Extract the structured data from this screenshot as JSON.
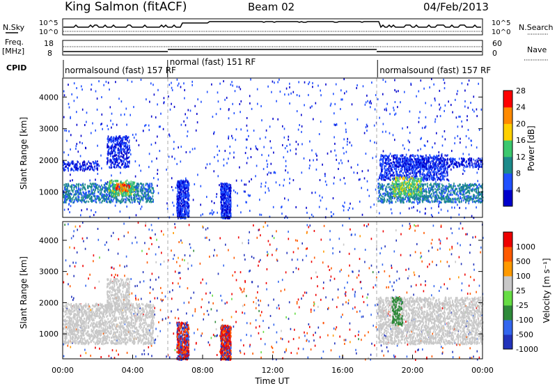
{
  "header": {
    "station": "King Salmon (fitACF)",
    "beam": "Beam 02",
    "date": "04/Feb/2013"
  },
  "status_panels": {
    "nsky_label": "N.Sky",
    "nsearch_label": "N.Search",
    "nsky_ticks": [
      "10^5",
      "10^0"
    ],
    "nsearch_ticks": [
      "10^5",
      "10^0"
    ],
    "freq_label_1": "Freq.",
    "freq_label_2": "[MHz]",
    "freq_ticks": [
      "18",
      "8"
    ],
    "nave_label": "Nave",
    "nave_ticks": [
      "60",
      "0"
    ],
    "cpid_label": "CPID",
    "modes": [
      {
        "label": "normalsound (fast) 157 RF",
        "start_hour": 0,
        "end_hour": 6.0
      },
      {
        "label": "normal (fast) 151 RF",
        "start_hour": 6.0,
        "end_hour": 18.0
      },
      {
        "label": "normalsound (fast) 157 RF",
        "start_hour": 18.0,
        "end_hour": 24.0
      }
    ]
  },
  "chart_data": [
    {
      "type": "heatmap",
      "name": "power",
      "ylabel": "Slant Range [km]",
      "xlabel": "",
      "xlim": [
        0,
        24
      ],
      "ylim": [
        200,
        4600
      ],
      "y_ticks": [
        "1000",
        "2000",
        "3000",
        "4000"
      ],
      "colorbar": {
        "label": "Power [dB]",
        "ticks": [
          "4",
          "8",
          "12",
          "16",
          "20",
          "24",
          "28"
        ],
        "colors": [
          "#0000cc",
          "#2050ff",
          "#1c8a8a",
          "#3cc86e",
          "#ffd000",
          "#ff8a00",
          "#ff0000"
        ],
        "range": [
          0,
          30
        ]
      },
      "regions": [
        {
          "t0": 0.0,
          "t1": 5.2,
          "r0": 700,
          "r1": 1300,
          "level": 9
        },
        {
          "t0": 0.0,
          "t1": 2.0,
          "r0": 1700,
          "r1": 2000,
          "level": 4
        },
        {
          "t0": 2.5,
          "t1": 3.8,
          "r0": 1800,
          "r1": 2800,
          "level": 4
        },
        {
          "t0": 2.6,
          "t1": 4.1,
          "r0": 900,
          "r1": 1400,
          "level": 14
        },
        {
          "t0": 3.0,
          "t1": 3.8,
          "r0": 1050,
          "r1": 1300,
          "level": 24
        },
        {
          "t0": 18.0,
          "t1": 24.0,
          "r0": 700,
          "r1": 1300,
          "level": 9
        },
        {
          "t0": 18.1,
          "t1": 22.0,
          "r0": 1400,
          "r1": 2200,
          "level": 5
        },
        {
          "t0": 18.8,
          "t1": 20.5,
          "r0": 900,
          "r1": 1500,
          "level": 15
        },
        {
          "t0": 19.0,
          "t1": 24.0,
          "r0": 1800,
          "r1": 2100,
          "level": 4
        }
      ],
      "sparse_blocks": [
        {
          "t0": 6.5,
          "t1": 7.2,
          "r0": 200,
          "r1": 1400,
          "density": 0.5
        },
        {
          "t0": 9.0,
          "t1": 9.6,
          "r0": 200,
          "r1": 1300,
          "density": 0.5
        }
      ]
    },
    {
      "type": "heatmap",
      "name": "velocity",
      "ylabel": "Slant Range [km]",
      "xlabel": "Time UT",
      "xlim": [
        0,
        24
      ],
      "ylim": [
        200,
        4600
      ],
      "x_ticks": [
        "00:00",
        "04:00",
        "08:00",
        "12:00",
        "16:00",
        "20:00",
        "00:00"
      ],
      "y_ticks": [
        "1000",
        "2000",
        "3000",
        "4000"
      ],
      "colorbar": {
        "label": "Velocity [m s⁻¹]",
        "ticks": [
          "1000",
          "500",
          "100",
          "25",
          "-25",
          "-100",
          "-500",
          "-1000"
        ],
        "colors": [
          "#2233bb",
          "#3366ee",
          "#2e8a3a",
          "#66dd44",
          "#c8c8c8",
          "#ff9a00",
          "#ff5a00",
          "#ee0000"
        ]
      },
      "regions": [
        {
          "t0": 0.0,
          "t1": 5.2,
          "r0": 700,
          "r1": 2000,
          "level": 0
        },
        {
          "t0": 2.5,
          "t1": 3.8,
          "r0": 1800,
          "r1": 2800,
          "level": 0
        },
        {
          "t0": 18.0,
          "t1": 24.0,
          "r0": 700,
          "r1": 2200,
          "level": 0
        },
        {
          "t0": 18.8,
          "t1": 19.4,
          "r0": 1300,
          "r1": 2200,
          "level": 80
        }
      ],
      "sparse_blocks": [
        {
          "t0": 6.5,
          "t1": 7.2,
          "r0": 200,
          "r1": 1400,
          "density": 0.55
        },
        {
          "t0": 9.0,
          "t1": 9.6,
          "r0": 200,
          "r1": 1300,
          "density": 0.55
        }
      ]
    }
  ]
}
